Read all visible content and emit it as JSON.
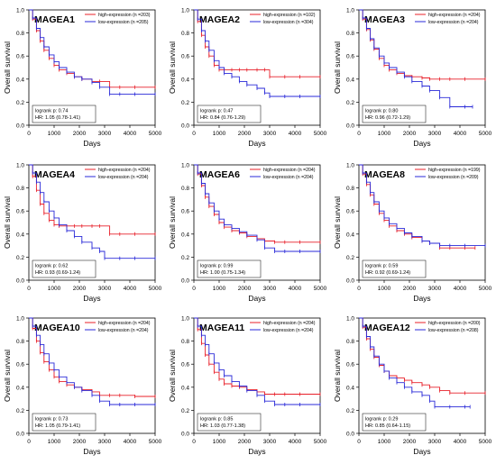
{
  "figure": {
    "x_axis_label": "Days",
    "y_axis_label": "Overall survival",
    "x_ticks": [
      0,
      1000,
      2000,
      3000,
      4000,
      5000
    ],
    "y_ticks": [
      "0.0",
      "0.2",
      "0.4",
      "0.6",
      "0.8",
      "1.0"
    ],
    "colors": {
      "high": "#e8202a",
      "low": "#2a2ad8"
    }
  },
  "chart_data": [
    {
      "type": "line",
      "title": "MAGEA1",
      "xlabel": "Days",
      "ylabel": "Overall survival",
      "xlim": [
        0,
        5000
      ],
      "ylim": [
        0,
        1
      ],
      "legend_position": "top-right",
      "logrank": "logrank p: 0.74",
      "hr": "HR: 1.05 (0.78-1.41)",
      "series": [
        {
          "name": "high-expression (n =203)",
          "x": [
            0,
            150,
            300,
            450,
            600,
            800,
            1000,
            1200,
            1500,
            1800,
            2100,
            2500,
            2800,
            3200,
            3600,
            4200,
            5000
          ],
          "y": [
            1.0,
            0.92,
            0.82,
            0.73,
            0.65,
            0.58,
            0.52,
            0.48,
            0.45,
            0.42,
            0.4,
            0.38,
            0.38,
            0.33,
            0.33,
            0.33,
            0.33
          ]
        },
        {
          "name": "low-expression (n =205)",
          "x": [
            0,
            150,
            300,
            450,
            600,
            800,
            1000,
            1200,
            1500,
            1800,
            2100,
            2500,
            2800,
            3200,
            3600,
            4200,
            5000
          ],
          "y": [
            1.0,
            0.93,
            0.84,
            0.76,
            0.68,
            0.61,
            0.55,
            0.5,
            0.46,
            0.42,
            0.4,
            0.37,
            0.33,
            0.27,
            0.27,
            0.27,
            0.27
          ]
        }
      ]
    },
    {
      "type": "line",
      "title": "MAGEA2",
      "xlabel": "Days",
      "ylabel": "Overall survival",
      "xlim": [
        0,
        5000
      ],
      "ylim": [
        0,
        1
      ],
      "legend_position": "top-right",
      "logrank": "logrank p: 0.47",
      "hr": "HR: 0.84 (0.76-1.29)",
      "series": [
        {
          "name": "high-expression (n =102)",
          "x": [
            0,
            150,
            300,
            450,
            600,
            800,
            1000,
            1200,
            1500,
            1800,
            2100,
            2500,
            2800,
            3000,
            3600,
            4200,
            5000
          ],
          "y": [
            1.0,
            0.9,
            0.78,
            0.68,
            0.6,
            0.52,
            0.48,
            0.48,
            0.48,
            0.48,
            0.48,
            0.48,
            0.48,
            0.42,
            0.42,
            0.42,
            0.42
          ]
        },
        {
          "name": "low-expression (n =304)",
          "x": [
            0,
            150,
            300,
            450,
            600,
            800,
            1000,
            1200,
            1500,
            1800,
            2100,
            2500,
            2800,
            3000,
            3600,
            4200,
            5000
          ],
          "y": [
            1.0,
            0.92,
            0.82,
            0.73,
            0.65,
            0.56,
            0.5,
            0.45,
            0.42,
            0.38,
            0.35,
            0.32,
            0.28,
            0.25,
            0.25,
            0.25,
            0.25
          ]
        }
      ]
    },
    {
      "type": "line",
      "title": "MAGEA3",
      "xlabel": "Days",
      "ylabel": "Overall survival",
      "xlim": [
        0,
        5000
      ],
      "ylim": [
        0,
        1
      ],
      "legend_position": "top-right",
      "logrank": "logrank p: 0.80",
      "hr": "HR: 0.96 (0.72-1.29)",
      "series": [
        {
          "name": "high-expression (n =204)",
          "x": [
            0,
            150,
            300,
            450,
            600,
            800,
            1000,
            1200,
            1500,
            1800,
            2100,
            2500,
            2800,
            3200,
            3600,
            4200,
            5000
          ],
          "y": [
            1.0,
            0.92,
            0.83,
            0.74,
            0.66,
            0.58,
            0.52,
            0.48,
            0.45,
            0.43,
            0.42,
            0.41,
            0.4,
            0.4,
            0.4,
            0.4,
            0.4
          ]
        },
        {
          "name": "low-expression (n =204)",
          "x": [
            0,
            150,
            300,
            450,
            600,
            800,
            1000,
            1200,
            1500,
            1800,
            2100,
            2500,
            2800,
            3200,
            3600,
            4200,
            4500
          ],
          "y": [
            1.0,
            0.93,
            0.84,
            0.75,
            0.67,
            0.6,
            0.54,
            0.5,
            0.46,
            0.42,
            0.38,
            0.34,
            0.3,
            0.24,
            0.16,
            0.16,
            0.16
          ]
        }
      ]
    },
    {
      "type": "line",
      "title": "MAGEA4",
      "xlabel": "Days",
      "ylabel": "Overall survival",
      "xlim": [
        0,
        5000
      ],
      "ylim": [
        0,
        1
      ],
      "legend_position": "top-right",
      "logrank": "logrank p: 0.62",
      "hr": "HR: 0.93 (0.69-1.24)",
      "series": [
        {
          "name": "high-expression (n =204)",
          "x": [
            0,
            150,
            300,
            450,
            600,
            800,
            1000,
            1200,
            1500,
            1800,
            2100,
            2500,
            2800,
            3200,
            3600,
            4200,
            5000
          ],
          "y": [
            1.0,
            0.9,
            0.78,
            0.66,
            0.58,
            0.52,
            0.48,
            0.47,
            0.47,
            0.47,
            0.47,
            0.47,
            0.47,
            0.4,
            0.4,
            0.4,
            0.4
          ]
        },
        {
          "name": "low-expression (n =204)",
          "x": [
            0,
            150,
            300,
            450,
            600,
            800,
            1000,
            1200,
            1500,
            1800,
            2100,
            2500,
            2800,
            3000,
            3600,
            4200,
            5000
          ],
          "y": [
            1.0,
            0.93,
            0.85,
            0.76,
            0.68,
            0.6,
            0.54,
            0.48,
            0.43,
            0.38,
            0.33,
            0.28,
            0.25,
            0.19,
            0.19,
            0.19,
            0.19
          ]
        }
      ]
    },
    {
      "type": "line",
      "title": "MAGEA6",
      "xlabel": "Days",
      "ylabel": "Overall survival",
      "xlim": [
        0,
        5000
      ],
      "ylim": [
        0,
        1
      ],
      "legend_position": "top-right",
      "logrank": "logrank p: 0.99",
      "hr": "HR: 1.00 (0.75-1.34)",
      "series": [
        {
          "name": "high-expression (n =204)",
          "x": [
            0,
            150,
            300,
            450,
            600,
            800,
            1000,
            1200,
            1500,
            1800,
            2100,
            2500,
            2800,
            3200,
            3600,
            4200,
            5000
          ],
          "y": [
            1.0,
            0.92,
            0.82,
            0.72,
            0.64,
            0.57,
            0.5,
            0.46,
            0.43,
            0.41,
            0.38,
            0.36,
            0.34,
            0.33,
            0.33,
            0.33,
            0.33
          ]
        },
        {
          "name": "low-expression (n =204)",
          "x": [
            0,
            150,
            300,
            450,
            600,
            800,
            1000,
            1200,
            1500,
            1800,
            2100,
            2500,
            2800,
            3200,
            3600,
            4200,
            5000
          ],
          "y": [
            1.0,
            0.93,
            0.84,
            0.75,
            0.67,
            0.6,
            0.53,
            0.48,
            0.45,
            0.42,
            0.39,
            0.35,
            0.28,
            0.25,
            0.25,
            0.25,
            0.25
          ]
        }
      ]
    },
    {
      "type": "line",
      "title": "MAGEA8",
      "xlabel": "Days",
      "ylabel": "Overall survival",
      "xlim": [
        0,
        5000
      ],
      "ylim": [
        0,
        1
      ],
      "legend_position": "top-right",
      "logrank": "logrank p: 0.59",
      "hr": "HR: 0.92 (0.69-1.24)",
      "series": [
        {
          "name": "high-expression (n =199)",
          "x": [
            0,
            150,
            300,
            450,
            600,
            800,
            1000,
            1200,
            1500,
            1800,
            2100,
            2500,
            2800,
            3200,
            3600,
            4200,
            4600
          ],
          "y": [
            1.0,
            0.92,
            0.83,
            0.74,
            0.66,
            0.58,
            0.52,
            0.47,
            0.43,
            0.4,
            0.37,
            0.34,
            0.32,
            0.28,
            0.28,
            0.28,
            0.28
          ]
        },
        {
          "name": "low-expression (n =209)",
          "x": [
            0,
            150,
            300,
            450,
            600,
            800,
            1000,
            1200,
            1500,
            1800,
            2100,
            2500,
            2800,
            3200,
            3600,
            4200,
            5000
          ],
          "y": [
            1.0,
            0.93,
            0.85,
            0.76,
            0.68,
            0.6,
            0.54,
            0.49,
            0.45,
            0.41,
            0.38,
            0.34,
            0.32,
            0.3,
            0.3,
            0.3,
            0.3
          ]
        }
      ]
    },
    {
      "type": "line",
      "title": "MAGEA10",
      "xlabel": "Days",
      "ylabel": "Overall survival",
      "xlim": [
        0,
        5000
      ],
      "ylim": [
        0,
        1
      ],
      "legend_position": "top-right",
      "logrank": "logrank p: 0.73",
      "hr": "HR: 1.05 (0.79-1.41)",
      "series": [
        {
          "name": "high-expression (n =204)",
          "x": [
            0,
            150,
            300,
            450,
            600,
            800,
            1000,
            1200,
            1500,
            1800,
            2100,
            2500,
            2800,
            3200,
            3600,
            4200,
            5000
          ],
          "y": [
            1.0,
            0.91,
            0.8,
            0.7,
            0.62,
            0.55,
            0.49,
            0.45,
            0.42,
            0.4,
            0.38,
            0.36,
            0.33,
            0.33,
            0.33,
            0.32,
            0.32
          ]
        },
        {
          "name": "low-expression (n =204)",
          "x": [
            0,
            150,
            300,
            450,
            600,
            800,
            1000,
            1200,
            1500,
            1800,
            2100,
            2500,
            2800,
            3200,
            3600,
            4200,
            5000
          ],
          "y": [
            1.0,
            0.93,
            0.85,
            0.77,
            0.69,
            0.61,
            0.55,
            0.49,
            0.44,
            0.4,
            0.37,
            0.33,
            0.28,
            0.25,
            0.25,
            0.25,
            0.25
          ]
        }
      ]
    },
    {
      "type": "line",
      "title": "MAGEA11",
      "xlabel": "Days",
      "ylabel": "Overall survival",
      "xlim": [
        0,
        5000
      ],
      "ylim": [
        0,
        1
      ],
      "legend_position": "top-right",
      "logrank": "logrank p: 0.85",
      "hr": "HR: 1.03 (0.77-1.38)",
      "series": [
        {
          "name": "high-expression (n =204)",
          "x": [
            0,
            150,
            300,
            450,
            600,
            800,
            1000,
            1200,
            1500,
            1800,
            2100,
            2500,
            2800,
            3200,
            3600,
            4200,
            5000
          ],
          "y": [
            1.0,
            0.9,
            0.78,
            0.68,
            0.6,
            0.53,
            0.47,
            0.43,
            0.41,
            0.4,
            0.38,
            0.36,
            0.34,
            0.34,
            0.34,
            0.34,
            0.34
          ]
        },
        {
          "name": "low-expression (n =204)",
          "x": [
            0,
            150,
            300,
            450,
            600,
            800,
            1000,
            1200,
            1500,
            1800,
            2100,
            2500,
            2800,
            3200,
            3600,
            4200,
            5000
          ],
          "y": [
            1.0,
            0.93,
            0.85,
            0.77,
            0.69,
            0.61,
            0.55,
            0.5,
            0.45,
            0.41,
            0.37,
            0.33,
            0.28,
            0.25,
            0.25,
            0.25,
            0.25
          ]
        }
      ]
    },
    {
      "type": "line",
      "title": "MAGEA12",
      "xlabel": "Days",
      "ylabel": "Overall survival",
      "xlim": [
        0,
        5000
      ],
      "ylim": [
        0,
        1
      ],
      "legend_position": "top-right",
      "logrank": "logrank p: 0.29",
      "hr": "HR: 0.85 (0.64-1.15)",
      "series": [
        {
          "name": "high-expression (n =200)",
          "x": [
            0,
            150,
            300,
            450,
            600,
            800,
            1000,
            1200,
            1500,
            1800,
            2100,
            2500,
            2800,
            3200,
            3600,
            4200,
            5000
          ],
          "y": [
            1.0,
            0.92,
            0.82,
            0.73,
            0.66,
            0.59,
            0.54,
            0.5,
            0.48,
            0.46,
            0.44,
            0.42,
            0.4,
            0.37,
            0.35,
            0.35,
            0.35
          ]
        },
        {
          "name": "low-expression (n =208)",
          "x": [
            0,
            150,
            300,
            450,
            600,
            800,
            1000,
            1200,
            1500,
            1800,
            2100,
            2500,
            2800,
            3000,
            3600,
            4200,
            4400
          ],
          "y": [
            1.0,
            0.93,
            0.84,
            0.75,
            0.67,
            0.6,
            0.54,
            0.48,
            0.44,
            0.4,
            0.36,
            0.33,
            0.28,
            0.23,
            0.23,
            0.23,
            0.23
          ]
        }
      ]
    }
  ]
}
